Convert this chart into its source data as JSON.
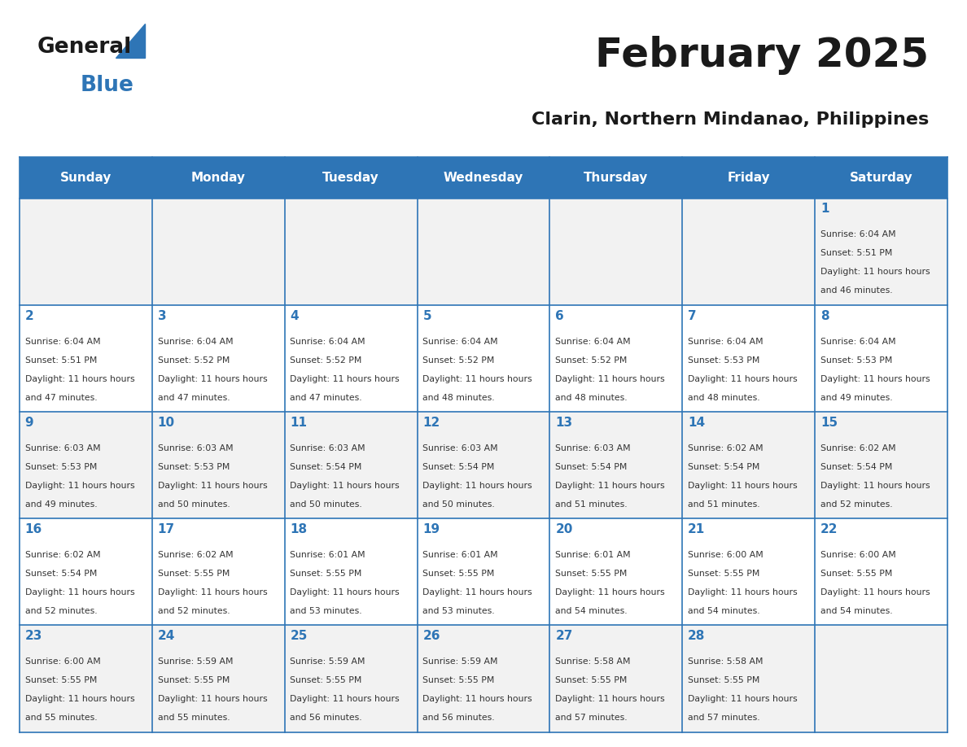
{
  "title": "February 2025",
  "subtitle": "Clarin, Northern Mindanao, Philippines",
  "days_of_week": [
    "Sunday",
    "Monday",
    "Tuesday",
    "Wednesday",
    "Thursday",
    "Friday",
    "Saturday"
  ],
  "header_bg": "#2E75B6",
  "header_text": "#FFFFFF",
  "row_bg_odd": "#F2F2F2",
  "row_bg_even": "#FFFFFF",
  "cell_border": "#2E75B6",
  "day_text_color": "#2E75B6",
  "info_text_color": "#333333",
  "calendar_data": [
    [
      null,
      null,
      null,
      null,
      null,
      null,
      {
        "day": 1,
        "sunrise": "6:04 AM",
        "sunset": "5:51 PM",
        "daylight": "11 hours and 46 minutes."
      }
    ],
    [
      {
        "day": 2,
        "sunrise": "6:04 AM",
        "sunset": "5:51 PM",
        "daylight": "11 hours and 47 minutes."
      },
      {
        "day": 3,
        "sunrise": "6:04 AM",
        "sunset": "5:52 PM",
        "daylight": "11 hours and 47 minutes."
      },
      {
        "day": 4,
        "sunrise": "6:04 AM",
        "sunset": "5:52 PM",
        "daylight": "11 hours and 47 minutes."
      },
      {
        "day": 5,
        "sunrise": "6:04 AM",
        "sunset": "5:52 PM",
        "daylight": "11 hours and 48 minutes."
      },
      {
        "day": 6,
        "sunrise": "6:04 AM",
        "sunset": "5:52 PM",
        "daylight": "11 hours and 48 minutes."
      },
      {
        "day": 7,
        "sunrise": "6:04 AM",
        "sunset": "5:53 PM",
        "daylight": "11 hours and 48 minutes."
      },
      {
        "day": 8,
        "sunrise": "6:04 AM",
        "sunset": "5:53 PM",
        "daylight": "11 hours and 49 minutes."
      }
    ],
    [
      {
        "day": 9,
        "sunrise": "6:03 AM",
        "sunset": "5:53 PM",
        "daylight": "11 hours and 49 minutes."
      },
      {
        "day": 10,
        "sunrise": "6:03 AM",
        "sunset": "5:53 PM",
        "daylight": "11 hours and 50 minutes."
      },
      {
        "day": 11,
        "sunrise": "6:03 AM",
        "sunset": "5:54 PM",
        "daylight": "11 hours and 50 minutes."
      },
      {
        "day": 12,
        "sunrise": "6:03 AM",
        "sunset": "5:54 PM",
        "daylight": "11 hours and 50 minutes."
      },
      {
        "day": 13,
        "sunrise": "6:03 AM",
        "sunset": "5:54 PM",
        "daylight": "11 hours and 51 minutes."
      },
      {
        "day": 14,
        "sunrise": "6:02 AM",
        "sunset": "5:54 PM",
        "daylight": "11 hours and 51 minutes."
      },
      {
        "day": 15,
        "sunrise": "6:02 AM",
        "sunset": "5:54 PM",
        "daylight": "11 hours and 52 minutes."
      }
    ],
    [
      {
        "day": 16,
        "sunrise": "6:02 AM",
        "sunset": "5:54 PM",
        "daylight": "11 hours and 52 minutes."
      },
      {
        "day": 17,
        "sunrise": "6:02 AM",
        "sunset": "5:55 PM",
        "daylight": "11 hours and 52 minutes."
      },
      {
        "day": 18,
        "sunrise": "6:01 AM",
        "sunset": "5:55 PM",
        "daylight": "11 hours and 53 minutes."
      },
      {
        "day": 19,
        "sunrise": "6:01 AM",
        "sunset": "5:55 PM",
        "daylight": "11 hours and 53 minutes."
      },
      {
        "day": 20,
        "sunrise": "6:01 AM",
        "sunset": "5:55 PM",
        "daylight": "11 hours and 54 minutes."
      },
      {
        "day": 21,
        "sunrise": "6:00 AM",
        "sunset": "5:55 PM",
        "daylight": "11 hours and 54 minutes."
      },
      {
        "day": 22,
        "sunrise": "6:00 AM",
        "sunset": "5:55 PM",
        "daylight": "11 hours and 54 minutes."
      }
    ],
    [
      {
        "day": 23,
        "sunrise": "6:00 AM",
        "sunset": "5:55 PM",
        "daylight": "11 hours and 55 minutes."
      },
      {
        "day": 24,
        "sunrise": "5:59 AM",
        "sunset": "5:55 PM",
        "daylight": "11 hours and 55 minutes."
      },
      {
        "day": 25,
        "sunrise": "5:59 AM",
        "sunset": "5:55 PM",
        "daylight": "11 hours and 56 minutes."
      },
      {
        "day": 26,
        "sunrise": "5:59 AM",
        "sunset": "5:55 PM",
        "daylight": "11 hours and 56 minutes."
      },
      {
        "day": 27,
        "sunrise": "5:58 AM",
        "sunset": "5:55 PM",
        "daylight": "11 hours and 57 minutes."
      },
      {
        "day": 28,
        "sunrise": "5:58 AM",
        "sunset": "5:55 PM",
        "daylight": "11 hours and 57 minutes."
      },
      null
    ]
  ],
  "logo_text_general": "General",
  "logo_text_blue": "Blue",
  "logo_color_general": "#1a1a1a",
  "logo_color_blue": "#2E75B6",
  "title_color": "#1a1a1a",
  "subtitle_color": "#1a1a1a"
}
